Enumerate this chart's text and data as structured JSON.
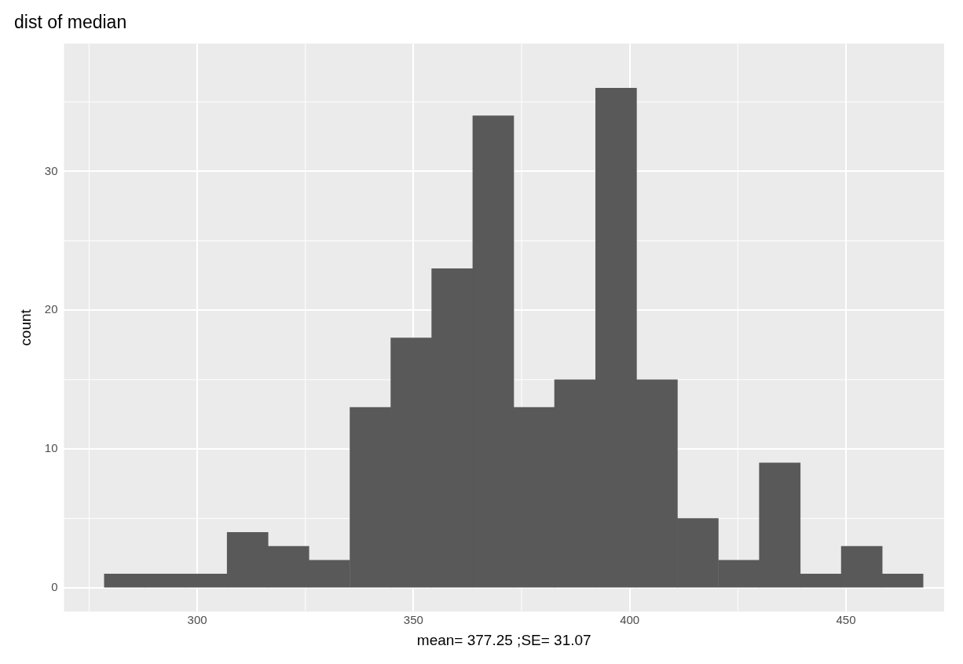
{
  "chart_data": {
    "type": "histogram",
    "title": "dist of median",
    "xlabel": "mean= 377.25 ;SE= 31.07",
    "ylabel": "count",
    "bins": [
      278.5,
      288.0,
      297.4,
      306.9,
      316.4,
      325.8,
      335.3,
      344.8,
      354.2,
      363.7,
      373.2,
      382.6,
      392.1,
      401.6,
      411.0,
      420.5,
      430.0,
      439.4,
      448.9,
      458.4,
      467.8
    ],
    "values": [
      1,
      1,
      1,
      4,
      3,
      2,
      13,
      18,
      23,
      34,
      13,
      15,
      36,
      15,
      5,
      2,
      9,
      1,
      3,
      1
    ],
    "color": "#595959",
    "xlim": [
      269.2,
      472.7
    ],
    "ylim": [
      -1.7,
      39.2
    ],
    "xticks": [
      300,
      350,
      400,
      450
    ],
    "yticks": [
      0,
      10,
      20,
      30
    ],
    "grid": true,
    "legend": false
  }
}
